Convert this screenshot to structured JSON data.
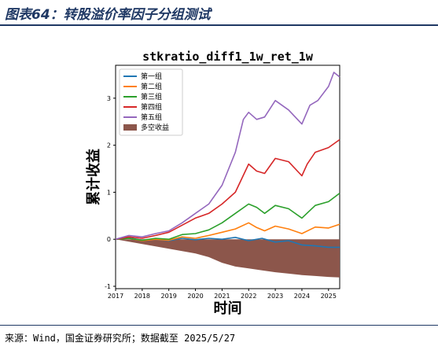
{
  "figure": {
    "title": "图表64：转股溢价率因子分组测试",
    "source": "来源：Wind，国金证券研究所；数据截至 2025/5/27"
  },
  "chart_data": {
    "type": "line",
    "title": "stkratio_diff1_1w_ret_1w",
    "xlabel": "时间",
    "ylabel": "累计收益",
    "xlim": [
      2017.0,
      2025.42
    ],
    "ylim": [
      -1.05,
      3.7
    ],
    "x_ticks": [
      "2017",
      "2018",
      "2019",
      "2020",
      "2021",
      "2022",
      "2023",
      "2024",
      "2025"
    ],
    "y_ticks": [
      -1,
      0,
      1,
      2,
      3
    ],
    "grid": false,
    "legend_position": "upper-left",
    "series": [
      {
        "name": "第一组",
        "color": "#1f77b4",
        "x": [
          2017.0,
          2017.5,
          2018.0,
          2018.5,
          2019.0,
          2019.5,
          2020.0,
          2020.5,
          2021.0,
          2021.5,
          2022.0,
          2022.5,
          2023.0,
          2023.5,
          2024.0,
          2024.5,
          2025.0,
          2025.42
        ],
        "y": [
          0.0,
          0.03,
          -0.02,
          0.0,
          -0.03,
          0.02,
          -0.01,
          0.02,
          0.0,
          0.04,
          -0.03,
          0.02,
          -0.06,
          -0.03,
          -0.12,
          -0.14,
          -0.17,
          -0.17
        ]
      },
      {
        "name": "第二组",
        "color": "#ff7f0e",
        "x": [
          2017.0,
          2017.5,
          2018.0,
          2018.5,
          2019.0,
          2019.5,
          2020.0,
          2020.5,
          2021.0,
          2021.5,
          2022.0,
          2022.3,
          2022.6,
          2023.0,
          2023.5,
          2024.0,
          2024.5,
          2025.0,
          2025.42
        ],
        "y": [
          0.0,
          0.02,
          -0.03,
          0.0,
          -0.02,
          0.05,
          0.02,
          0.08,
          0.15,
          0.22,
          0.35,
          0.25,
          0.18,
          0.28,
          0.22,
          0.12,
          0.26,
          0.24,
          0.32
        ]
      },
      {
        "name": "第三组",
        "color": "#2ca02c",
        "x": [
          2017.0,
          2017.5,
          2018.0,
          2018.5,
          2019.0,
          2019.5,
          2020.0,
          2020.5,
          2021.0,
          2021.5,
          2022.0,
          2022.3,
          2022.6,
          2023.0,
          2023.5,
          2024.0,
          2024.5,
          2025.0,
          2025.42
        ],
        "y": [
          0.0,
          0.02,
          -0.02,
          0.02,
          0.0,
          0.1,
          0.12,
          0.2,
          0.35,
          0.55,
          0.75,
          0.68,
          0.55,
          0.72,
          0.65,
          0.45,
          0.72,
          0.8,
          0.98
        ]
      },
      {
        "name": "第四组",
        "color": "#d62728",
        "x": [
          2017.0,
          2017.5,
          2018.0,
          2018.5,
          2019.0,
          2019.5,
          2020.0,
          2020.5,
          2021.0,
          2021.5,
          2022.0,
          2022.3,
          2022.6,
          2023.0,
          2023.5,
          2024.0,
          2024.2,
          2024.5,
          2025.0,
          2025.42
        ],
        "y": [
          0.0,
          0.05,
          0.02,
          0.08,
          0.15,
          0.3,
          0.45,
          0.55,
          0.75,
          1.0,
          1.6,
          1.45,
          1.4,
          1.72,
          1.65,
          1.35,
          1.6,
          1.85,
          1.95,
          2.12
        ]
      },
      {
        "name": "第五组",
        "color": "#9467bd",
        "x": [
          2017.0,
          2017.5,
          2018.0,
          2018.5,
          2019.0,
          2019.5,
          2020.0,
          2020.5,
          2021.0,
          2021.5,
          2021.8,
          2022.0,
          2022.3,
          2022.6,
          2023.0,
          2023.5,
          2024.0,
          2024.3,
          2024.6,
          2025.0,
          2025.2,
          2025.42
        ],
        "y": [
          0.0,
          0.08,
          0.05,
          0.12,
          0.18,
          0.35,
          0.55,
          0.75,
          1.15,
          1.85,
          2.55,
          2.7,
          2.55,
          2.6,
          2.95,
          2.75,
          2.45,
          2.85,
          2.95,
          3.25,
          3.55,
          3.45
        ]
      }
    ],
    "area": {
      "name": "多空收益",
      "color": "#8c564b",
      "x": [
        2017.0,
        2017.5,
        2018.0,
        2018.5,
        2019.0,
        2019.5,
        2020.0,
        2020.5,
        2021.0,
        2021.5,
        2022.0,
        2022.5,
        2023.0,
        2023.5,
        2024.0,
        2024.5,
        2025.0,
        2025.42
      ],
      "y": [
        0.0,
        -0.05,
        -0.1,
        -0.15,
        -0.2,
        -0.25,
        -0.3,
        -0.38,
        -0.5,
        -0.58,
        -0.62,
        -0.66,
        -0.7,
        -0.73,
        -0.76,
        -0.78,
        -0.8,
        -0.81
      ]
    }
  }
}
